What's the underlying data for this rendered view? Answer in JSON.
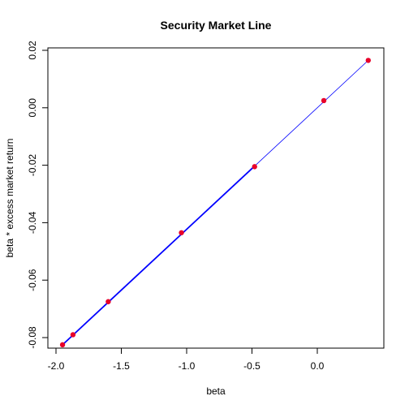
{
  "chart_data": {
    "type": "scatter",
    "title": "Security Market Line",
    "xlabel": "beta",
    "ylabel": "beta * excess market return",
    "xlim": [
      -2.0,
      0.4
    ],
    "ylim": [
      -0.085,
      0.021
    ],
    "x_ticks": [
      -2.0,
      -1.5,
      -1.0,
      -0.5,
      0.0
    ],
    "x_tick_labels": [
      "-2.0",
      "-1.5",
      "-1.0",
      "-0.5",
      "0.0"
    ],
    "y_ticks": [
      -0.08,
      -0.06,
      -0.04,
      -0.02,
      0.0,
      0.02
    ],
    "y_tick_labels": [
      "-0.08",
      "-0.06",
      "-0.04",
      "-0.02",
      "0.00",
      "0.02"
    ],
    "grid": false,
    "box": true,
    "line": {
      "x": [
        -1.95,
        0.39
      ],
      "y": [
        -0.0825,
        0.0165
      ],
      "color": "#0000ff",
      "bold_range_x": [
        -1.95,
        -0.48
      ]
    },
    "points": {
      "x": [
        -1.95,
        -1.87,
        -1.6,
        -1.04,
        -0.48,
        0.05,
        0.39
      ],
      "y": [
        -0.0825,
        -0.079,
        -0.0675,
        -0.0435,
        -0.0205,
        0.0025,
        0.0165
      ],
      "color": "#e8002a"
    }
  }
}
